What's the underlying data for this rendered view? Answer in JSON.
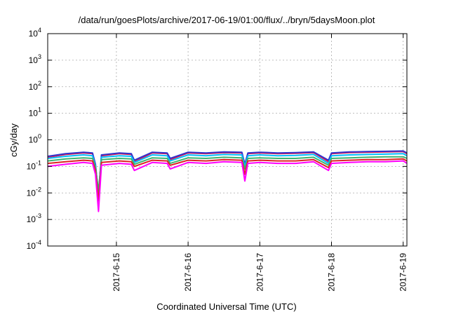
{
  "chart_data": {
    "type": "line",
    "title": "/data/run/goesPlots/archive/2017-06-19/01:00/flux/../bryn/5daysMoon.plot",
    "xlabel": "Coordinated Universal Time (UTC)",
    "ylabel": "cGy/day",
    "yscale": "log",
    "ylim": [
      0.0001,
      10000
    ],
    "xlim": [
      "2017-06-14T01:00",
      "2017-06-19T01:15"
    ],
    "grid": true,
    "legend": "none",
    "y_ticks": [
      {
        "base": "10",
        "exp": "-4",
        "value": 0.0001
      },
      {
        "base": "10",
        "exp": "-3",
        "value": 0.001
      },
      {
        "base": "10",
        "exp": "-2",
        "value": 0.01
      },
      {
        "base": "10",
        "exp": "-1",
        "value": 0.1
      },
      {
        "base": "10",
        "exp": "0",
        "value": 1
      },
      {
        "base": "10",
        "exp": "1",
        "value": 10
      },
      {
        "base": "10",
        "exp": "2",
        "value": 100
      },
      {
        "base": "10",
        "exp": "3",
        "value": 1000
      },
      {
        "base": "10",
        "exp": "4",
        "value": 10000
      }
    ],
    "x_ticks": [
      {
        "label": "2017-6-15",
        "value": "2017-06-15T00:00"
      },
      {
        "label": "2017-6-16",
        "value": "2017-06-16T00:00"
      },
      {
        "label": "2017-6-17",
        "value": "2017-06-17T00:00"
      },
      {
        "label": "2017-6-18",
        "value": "2017-06-18T00:00"
      },
      {
        "label": "2017-6-19",
        "value": "2017-06-19T00:00"
      }
    ],
    "x": [
      "2017-06-14T01:00",
      "2017-06-14T07:00",
      "2017-06-14T13:00",
      "2017-06-14T16:00",
      "2017-06-14T17:00",
      "2017-06-14T18:00",
      "2017-06-14T19:00",
      "2017-06-15T01:00",
      "2017-06-15T05:00",
      "2017-06-15T06:00",
      "2017-06-15T12:00",
      "2017-06-15T17:00",
      "2017-06-15T18:00",
      "2017-06-16T00:00",
      "2017-06-16T06:00",
      "2017-06-16T12:00",
      "2017-06-16T18:00",
      "2017-06-16T19:00",
      "2017-06-16T20:00",
      "2017-06-17T00:00",
      "2017-06-17T06:00",
      "2017-06-17T12:00",
      "2017-06-17T18:00",
      "2017-06-17T23:00",
      "2017-06-18T00:00",
      "2017-06-18T06:00",
      "2017-06-18T12:00",
      "2017-06-18T18:00",
      "2017-06-19T00:00",
      "2017-06-19T01:15"
    ],
    "series": [
      {
        "color": "#e6194b",
        "values": [
          0.22,
          0.28,
          0.32,
          0.3,
          0.1,
          0.006,
          0.25,
          0.3,
          0.28,
          0.15,
          0.32,
          0.3,
          0.18,
          0.32,
          0.3,
          0.33,
          0.32,
          0.1,
          0.3,
          0.32,
          0.3,
          0.31,
          0.33,
          0.15,
          0.3,
          0.33,
          0.34,
          0.35,
          0.36,
          0.3
        ]
      },
      {
        "color": "#3333cc",
        "values": [
          0.24,
          0.3,
          0.34,
          0.32,
          0.12,
          0.008,
          0.27,
          0.32,
          0.3,
          0.17,
          0.34,
          0.32,
          0.2,
          0.34,
          0.32,
          0.35,
          0.34,
          0.12,
          0.32,
          0.34,
          0.32,
          0.33,
          0.35,
          0.17,
          0.32,
          0.35,
          0.36,
          0.37,
          0.38,
          0.32
        ]
      },
      {
        "color": "#00bfff",
        "values": [
          0.2,
          0.24,
          0.27,
          0.25,
          0.1,
          0.01,
          0.22,
          0.25,
          0.24,
          0.14,
          0.27,
          0.25,
          0.16,
          0.27,
          0.25,
          0.28,
          0.27,
          0.1,
          0.25,
          0.27,
          0.25,
          0.26,
          0.28,
          0.13,
          0.25,
          0.27,
          0.28,
          0.29,
          0.3,
          0.25
        ]
      },
      {
        "color": "#3cb371",
        "values": [
          0.16,
          0.19,
          0.21,
          0.2,
          0.09,
          0.012,
          0.18,
          0.2,
          0.19,
          0.12,
          0.21,
          0.2,
          0.13,
          0.21,
          0.2,
          0.22,
          0.21,
          0.08,
          0.2,
          0.21,
          0.2,
          0.2,
          0.22,
          0.11,
          0.2,
          0.21,
          0.22,
          0.23,
          0.23,
          0.2
        ]
      },
      {
        "color": "#dd2222",
        "values": [
          0.13,
          0.15,
          0.17,
          0.16,
          0.07,
          0.005,
          0.14,
          0.16,
          0.15,
          0.1,
          0.17,
          0.16,
          0.11,
          0.17,
          0.16,
          0.18,
          0.17,
          0.05,
          0.16,
          0.17,
          0.16,
          0.16,
          0.18,
          0.09,
          0.16,
          0.17,
          0.18,
          0.18,
          0.19,
          0.16
        ]
      },
      {
        "color": "#ff00ff",
        "values": [
          0.1,
          0.12,
          0.14,
          0.13,
          0.05,
          0.002,
          0.11,
          0.13,
          0.12,
          0.07,
          0.14,
          0.13,
          0.08,
          0.14,
          0.13,
          0.15,
          0.14,
          0.028,
          0.13,
          0.14,
          0.13,
          0.13,
          0.15,
          0.07,
          0.13,
          0.14,
          0.15,
          0.15,
          0.16,
          0.13
        ]
      }
    ]
  }
}
